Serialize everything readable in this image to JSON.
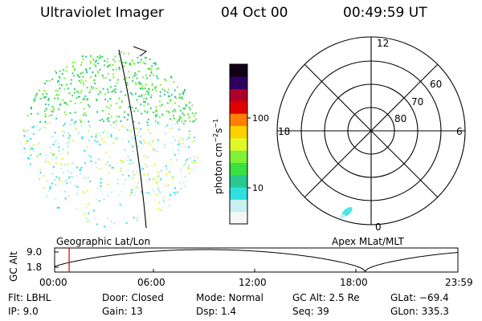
{
  "header": {
    "instrument": "Ultraviolet Imager",
    "date": "04 Oct 00",
    "time": "00:49:59 UT"
  },
  "image_panel": {
    "label": "Geographic Lat/Lon"
  },
  "colorbar": {
    "unit_prefix": "photon cm",
    "exp1": "−2",
    "s": "s",
    "exp2": "−1",
    "ticks": [
      "100",
      "10"
    ],
    "colors": [
      "#f6f6f6",
      "#c8f0f0",
      "#30e0e0",
      "#28c890",
      "#38e040",
      "#80f038",
      "#e0f828",
      "#ffd000",
      "#ff8000",
      "#e00000",
      "#b00028",
      "#300060",
      "#100018"
    ]
  },
  "polar_plot": {
    "label": "Apex  MLat/MLT",
    "mlt_labels": [
      "12",
      "18",
      "6",
      "0"
    ],
    "lat_labels": [
      "60",
      "70",
      "80"
    ]
  },
  "altitude_plot": {
    "ylabel": "GC Alt",
    "yticks": [
      "9.0",
      "1.8"
    ],
    "xticks": [
      "00:00",
      "06:00",
      "12:00",
      "18:00",
      "23:59"
    ],
    "current_time_fraction": 0.036
  },
  "footer": {
    "filter": "Flt: LBHL",
    "door": "Door: Closed",
    "mode": "Mode: Normal",
    "gc_alt": "GC Alt: 2.5 Re",
    "glat": "GLat: −69.4",
    "ip": "IP: 9.0",
    "gain": "Gain: 13",
    "dsp": "Dsp:   1.4",
    "seq": "Seq: 39",
    "glon": "GLon: 335.3"
  }
}
